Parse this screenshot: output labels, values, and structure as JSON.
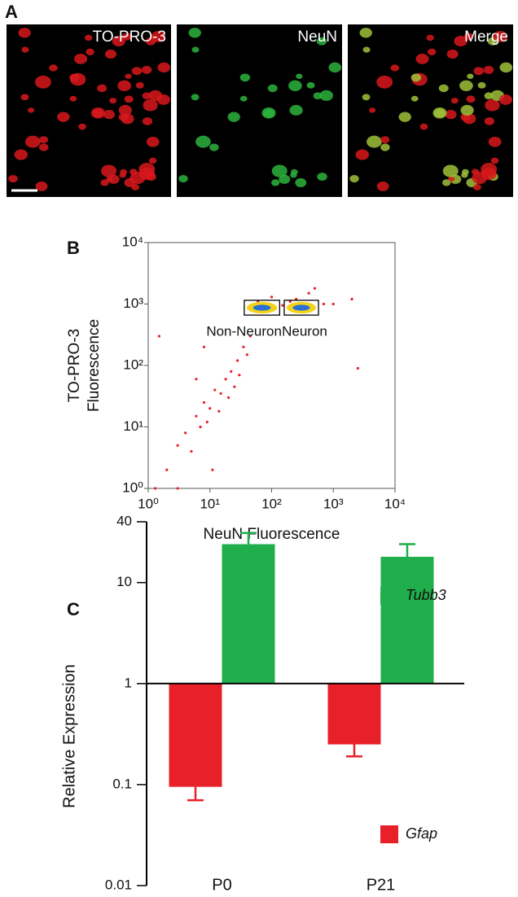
{
  "panel_labels": [
    "A",
    "B",
    "C"
  ],
  "images": [
    {
      "label": "TO-PRO-3"
    },
    {
      "label": "NeuN"
    },
    {
      "label": "Merge"
    }
  ],
  "chart_data": [
    {
      "type": "scatter",
      "xlabel": "NeuN Fluorescence",
      "ylabel": [
        "TO-PRO-3",
        "Fluorescence"
      ],
      "log_x": true,
      "log_y": true,
      "color": "#e8202a",
      "xlim": [
        1,
        10000
      ],
      "ylim": [
        1,
        10000
      ],
      "xticks": [
        {
          "value": 1,
          "label": "10⁰"
        },
        {
          "value": 10,
          "label": "10¹"
        },
        {
          "value": 100,
          "label": "10²"
        },
        {
          "value": 1000,
          "label": "10³"
        },
        {
          "value": 10000,
          "label": "10⁴"
        }
      ],
      "yticks": [
        {
          "value": 1,
          "label": "10⁰"
        },
        {
          "value": 10,
          "label": "10¹"
        },
        {
          "value": 100,
          "label": "10²"
        },
        {
          "value": 1000,
          "label": "10³"
        },
        {
          "value": 10000,
          "label": "10⁴"
        }
      ],
      "x": [
        1.5,
        2,
        3,
        4,
        5,
        6,
        7,
        8,
        9,
        10,
        12,
        14,
        15,
        18,
        20,
        22,
        25,
        28,
        30,
        35,
        40,
        45,
        50,
        60,
        80,
        90,
        100,
        150,
        200,
        250,
        300,
        400,
        500,
        700,
        1000,
        2000,
        2500,
        8,
        3,
        1.3,
        11,
        6
      ],
      "y": [
        300,
        2,
        5,
        8,
        4,
        15,
        10,
        25,
        12,
        20,
        40,
        18,
        35,
        60,
        30,
        80,
        45,
        120,
        70,
        200,
        150,
        300,
        900,
        1100,
        800,
        1000,
        1300,
        950,
        1100,
        1200,
        900,
        1500,
        1800,
        1000,
        1000,
        1200,
        90,
        200,
        1,
        1,
        2,
        60
      ],
      "gates": [
        {
          "label": "Non-Neuron",
          "xlim": [
            36,
            135
          ],
          "ylim": [
            660,
            1150
          ]
        },
        {
          "label": "Neuron",
          "xlim": [
            160,
            575
          ],
          "ylim": [
            660,
            1150
          ]
        }
      ]
    },
    {
      "type": "bar",
      "ylabel": "Relative Expression",
      "log_y": true,
      "baseline": 1,
      "categories": [
        "P0",
        "P21"
      ],
      "ylim": [
        0.01,
        40
      ],
      "yticks": [
        0.01,
        0.1,
        1,
        10,
        40
      ],
      "series": [
        {
          "name": "Gfap",
          "color": "#e8202a",
          "values": [
            0.095,
            0.25
          ],
          "errors": [
            0.025,
            0.06
          ]
        },
        {
          "name": "Tubb3",
          "color": "#1fae4b",
          "values": [
            24,
            18
          ],
          "errors": [
            7,
            6
          ]
        }
      ]
    }
  ]
}
